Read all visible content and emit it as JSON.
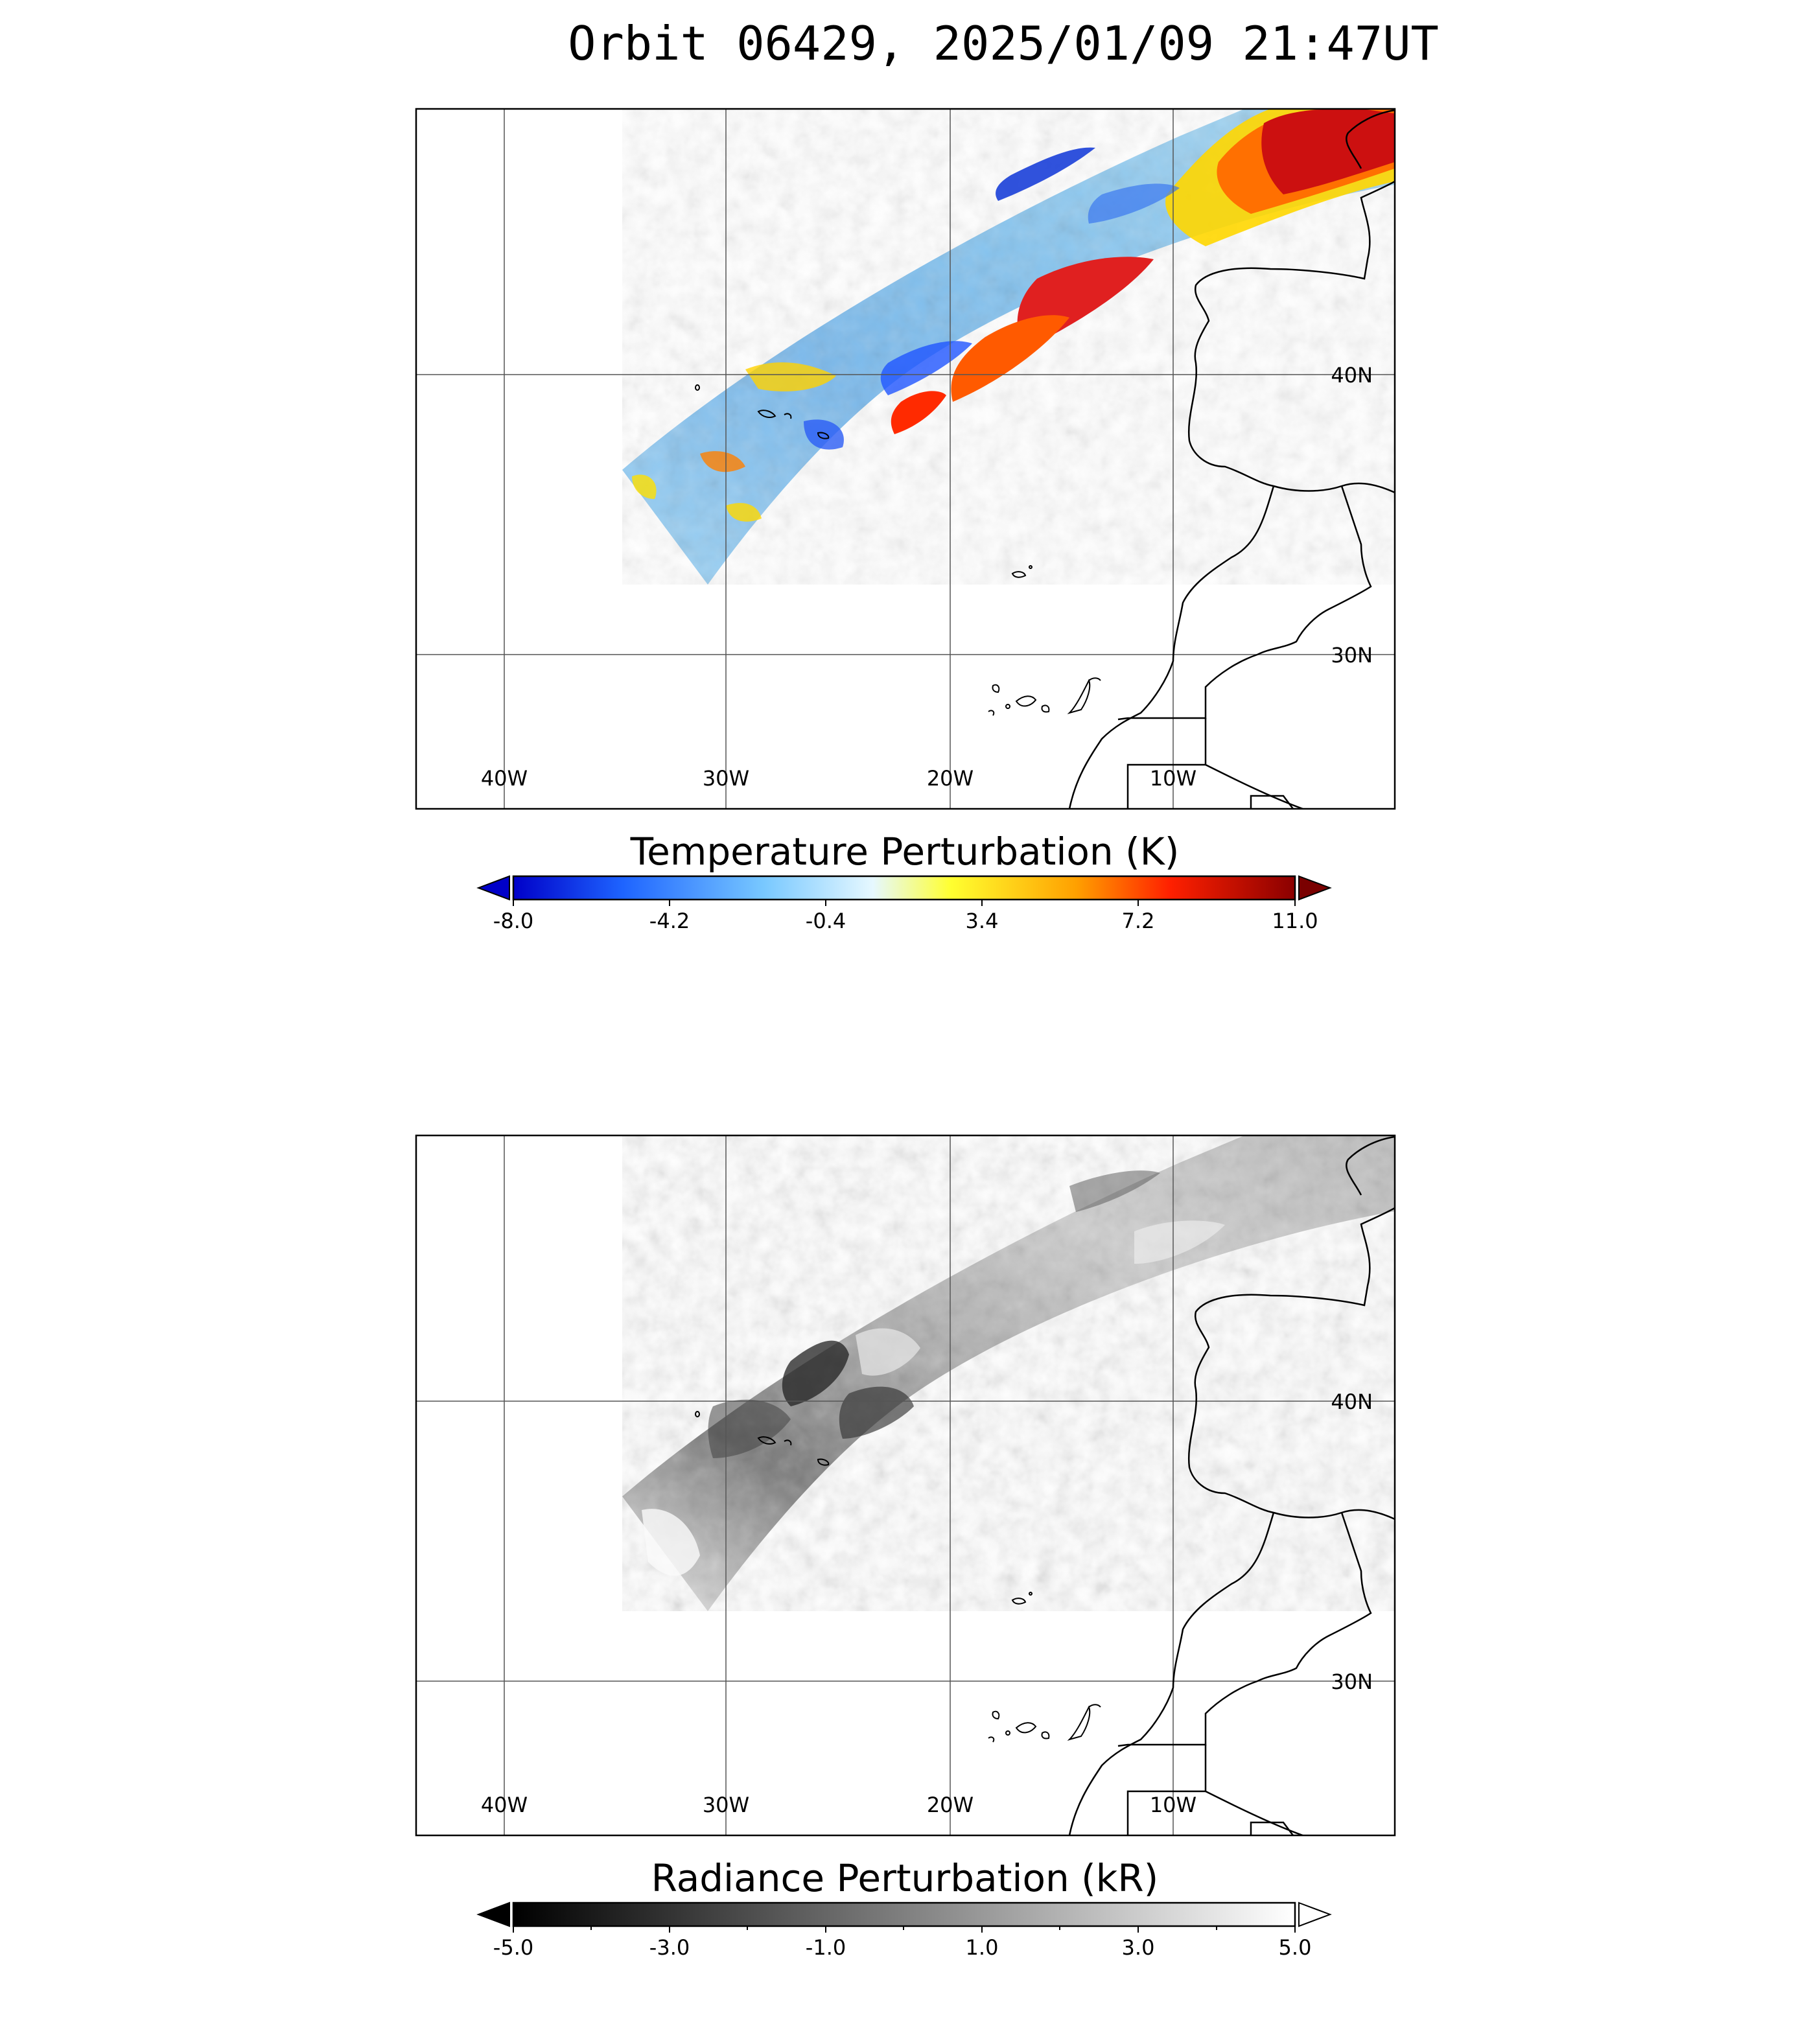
{
  "title": "Orbit 06429, 2025/01/09 21:47UT",
  "panels": [
    {
      "lon_labels": [
        "40W",
        "30W",
        "20W",
        "10W"
      ],
      "lat_labels": [
        "40N",
        "30N"
      ],
      "colorbar": {
        "title": "Temperature Perturbation (K)",
        "ticks": [
          "-8.0",
          "-4.2",
          "-0.4",
          "3.4",
          "7.2",
          "11.0"
        ],
        "range": [
          -8.0,
          11.0
        ],
        "colormap": "blue-white-yellow-red",
        "colors": [
          "#0000c8",
          "#1e64ff",
          "#78c8ff",
          "#e6f8ff",
          "#ffff30",
          "#ffa000",
          "#ff2000",
          "#8a0000"
        ],
        "under_color": "#0000c8",
        "over_color": "#7a0000"
      }
    },
    {
      "lon_labels": [
        "40W",
        "30W",
        "20W",
        "10W"
      ],
      "lat_labels": [
        "40N",
        "30N"
      ],
      "colorbar": {
        "title": "Radiance Perturbation (kR)",
        "ticks": [
          "-5.0",
          "-3.0",
          "-1.0",
          "1.0",
          "3.0",
          "5.0"
        ],
        "range": [
          -5.0,
          5.0
        ],
        "colormap": "grayscale",
        "colors": [
          "#000000",
          "#ffffff"
        ],
        "under_color": "#000000",
        "over_color": "#ffffff"
      }
    }
  ]
}
